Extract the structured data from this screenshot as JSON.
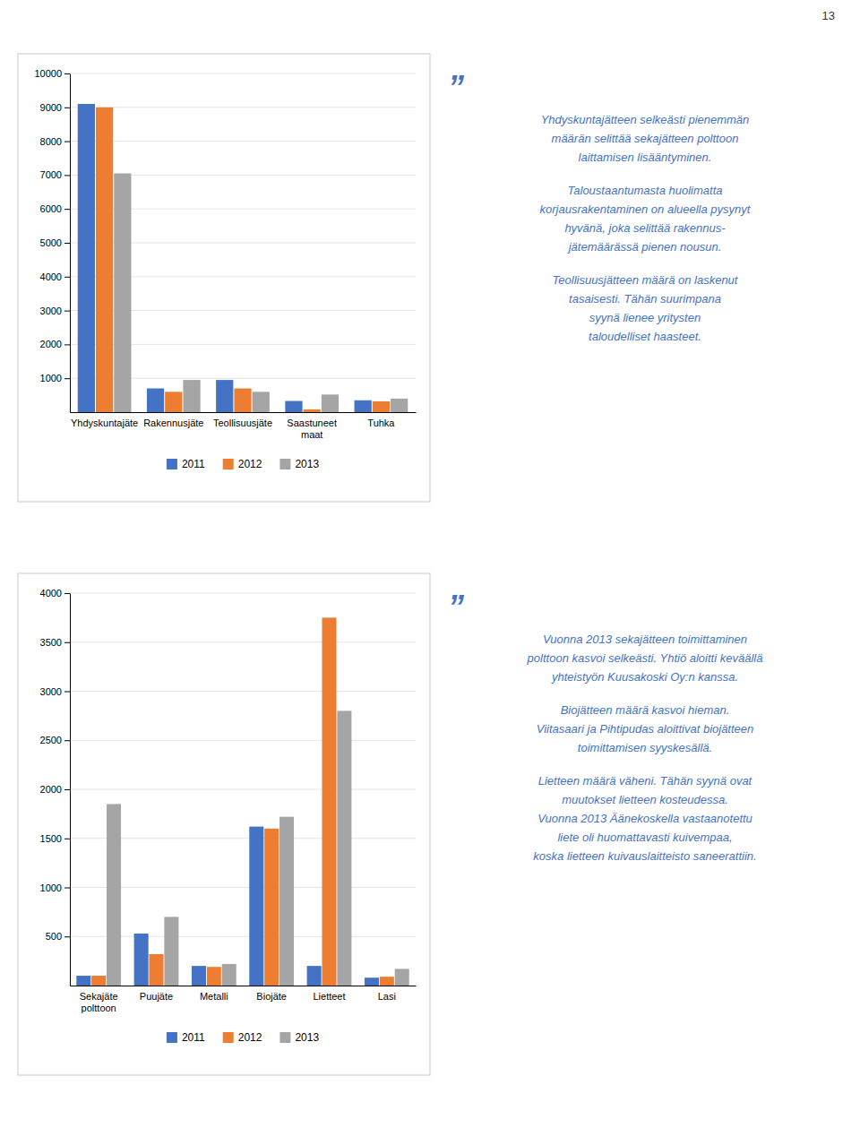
{
  "annotations": [
    "13"
  ],
  "chart_data": [
    {
      "type": "bar",
      "categories": [
        "Yhdyskuntajäte",
        "Rakennusjäte",
        "Teollisuusjäte",
        "Saastuneet maat",
        "Tuhka"
      ],
      "series": [
        {
          "name": "2011",
          "color": "#4472C4",
          "values": [
            9100,
            700,
            950,
            330,
            350
          ]
        },
        {
          "name": "2012",
          "color": "#ED7D31",
          "values": [
            9000,
            600,
            700,
            80,
            320
          ]
        },
        {
          "name": "2013",
          "color": "#A5A5A5",
          "values": [
            7050,
            950,
            600,
            520,
            400
          ]
        }
      ],
      "ylim": [
        0,
        10000
      ],
      "yticks": [
        1000,
        2000,
        3000,
        4000,
        5000,
        6000,
        7000,
        8000,
        9000,
        10000
      ],
      "grid": true,
      "legend": "bottom",
      "annotations": [
        [
          "”"
        ],
        [
          "Yhdyskuntajätteen selkeästi pienemmän",
          "määrän selittää sekajätteen polttoon",
          "laittamisen lisääntyminen."
        ],
        [
          "Taloustaantumasta huolimatta",
          "korjausrakentaminen on alueella pysynyt",
          "hyvänä, joka selittää rakennus-",
          "jätemäärässä pienen nousun."
        ],
        [
          "Teollisuusjätteen määrä on laskenut",
          "tasaisesti. Tähän suurimpana",
          "syynä lienee yritysten",
          "taloudelliset haasteet."
        ]
      ]
    },
    {
      "type": "bar",
      "categories": [
        "Sekajäte\npolttoon",
        "Puujäte",
        "Metalli",
        "Biojäte",
        "Lietteet",
        "Lasi"
      ],
      "series": [
        {
          "name": "2011",
          "color": "#4472C4",
          "values": [
            100,
            530,
            200,
            1620,
            200,
            80
          ]
        },
        {
          "name": "2012",
          "color": "#ED7D31",
          "values": [
            100,
            320,
            190,
            1600,
            3750,
            90
          ]
        },
        {
          "name": "2013",
          "color": "#A5A5A5",
          "values": [
            1850,
            700,
            220,
            1720,
            2800,
            170
          ]
        }
      ],
      "ylim": [
        0,
        4000
      ],
      "yticks": [
        500,
        1000,
        1500,
        2000,
        2500,
        3000,
        3500,
        4000
      ],
      "grid": true,
      "legend": "bottom",
      "annotations": [
        [
          "”"
        ],
        [
          "Vuonna 2013 sekajätteen toimittaminen",
          "polttoon kasvoi selkeästi. Yhtiö aloitti keväällä",
          "yhteistyön Kuusakoski Oy:n kanssa."
        ],
        [
          "Biojätteen määrä kasvoi hieman.",
          "Viitasaari ja Pihtipudas aloittivat biojätteen",
          "toimittamisen syyskesällä."
        ],
        [
          "Lietteen määrä väheni. Tähän syynä ovat",
          "muutokset lietteen kosteudessa.",
          "Vuonna 2013 Äänekoskella vastaanotettu",
          "liete oli huomattavasti kuivempaa,",
          "koska lietteen kuivauslaitteisto saneerattiin."
        ]
      ]
    }
  ]
}
